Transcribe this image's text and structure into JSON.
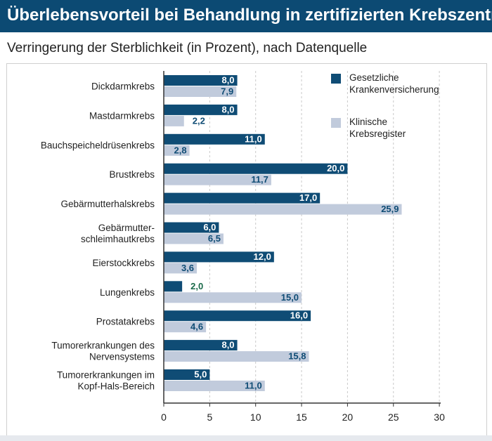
{
  "header": {
    "title": "Überlebensvorteil bei Behandlung in zertifizierten Krebszentren",
    "subtitle": "Verringerung der Sterblichkeit (in Prozent), nach Datenquelle"
  },
  "colors": {
    "header_bg": "#0c4a73",
    "series_dark": "#0f4c75",
    "series_light": "#c1cbdc",
    "value_on_dark": "#ffffff",
    "value_outside": "#0f4c75",
    "value_outside_highlight": "#1a6a4a",
    "axis": "#333333"
  },
  "chart_data": {
    "type": "bar",
    "orientation": "horizontal",
    "categories": [
      [
        "Dickdarmkrebs"
      ],
      [
        "Mastdarmkrebs"
      ],
      [
        "Bauchspeicheldrüsenkrebs"
      ],
      [
        "Brustkrebs"
      ],
      [
        "Gebärmutterhalskrebs"
      ],
      [
        "Gebärmutter-",
        "schleimhautkrebs"
      ],
      [
        "Eierstockkrebs"
      ],
      [
        "Lungenkrebs"
      ],
      [
        "Prostatakrebs"
      ],
      [
        "Tumorerkrankungen des",
        "Nervensystems"
      ],
      [
        "Tumorerkrankungen im",
        "Kopf-Hals-Bereich"
      ]
    ],
    "series": [
      {
        "name": [
          "Gesetzliche",
          "Krankenversicherung"
        ],
        "values": [
          8.0,
          8.0,
          11.0,
          20.0,
          17.0,
          6.0,
          12.0,
          2.0,
          16.0,
          8.0,
          5.0
        ],
        "labels": [
          "8,0",
          "8,0",
          "11,0",
          "20,0",
          "17,0",
          "6,0",
          "12,0",
          "2,0",
          "16,0",
          "8,0",
          "5,0"
        ]
      },
      {
        "name": [
          "Klinische",
          "Krebsregister"
        ],
        "values": [
          7.9,
          2.2,
          2.8,
          11.7,
          25.9,
          6.5,
          3.6,
          15.0,
          4.6,
          15.8,
          11.0
        ],
        "labels": [
          "7,9",
          "2,2",
          "2,8",
          "11,7",
          "25,9",
          "6,5",
          "3,6",
          "15,0",
          "4,6",
          "15,8",
          "11,0"
        ]
      }
    ],
    "xlim": [
      0,
      30
    ],
    "xticks": [
      0,
      5,
      10,
      15,
      20,
      25,
      30
    ],
    "xtick_labels": [
      "0",
      "5",
      "10",
      "15",
      "20",
      "25",
      "30"
    ],
    "grid": "vertical dashed",
    "legend": "top-right"
  }
}
